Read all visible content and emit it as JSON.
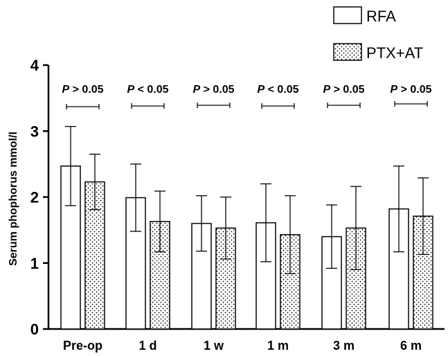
{
  "chart_data": {
    "type": "bar",
    "title": "",
    "xlabel": "",
    "ylabel": "Serum phophorus mmol/l",
    "ylim": [
      0,
      4
    ],
    "yticks": [
      "0",
      "1",
      "2",
      "3",
      "4"
    ],
    "categories": [
      "Pre-op",
      "1 d",
      "1 w",
      "1 m",
      "3 m",
      "6 m"
    ],
    "series": [
      {
        "name": "RFA",
        "pattern": "white",
        "values": [
          2.47,
          1.99,
          1.6,
          1.61,
          1.4,
          1.82
        ],
        "errors": [
          0.6,
          0.51,
          0.42,
          0.59,
          0.48,
          0.65
        ]
      },
      {
        "name": "PTX+AT",
        "pattern": "dotted",
        "values": [
          2.23,
          1.63,
          1.53,
          1.43,
          1.53,
          1.71
        ],
        "errors": [
          0.42,
          0.46,
          0.47,
          0.59,
          0.63,
          0.58
        ]
      }
    ],
    "comparisons": [
      {
        "p_italic": "P",
        "p_rest": " > 0.05"
      },
      {
        "p_italic": "P",
        "p_rest": " < 0.05"
      },
      {
        "p_italic": "P",
        "p_rest": " > 0.05"
      },
      {
        "p_italic": "P",
        "p_rest": " < 0.05"
      },
      {
        "p_italic": "P",
        "p_rest": " > 0.05"
      },
      {
        "p_italic": "P",
        "p_rest": " > 0.05"
      }
    ],
    "legend_position": "top-right",
    "grid": false,
    "colors": {
      "ink": "#000000",
      "bar_fill": "#ffffff"
    }
  }
}
